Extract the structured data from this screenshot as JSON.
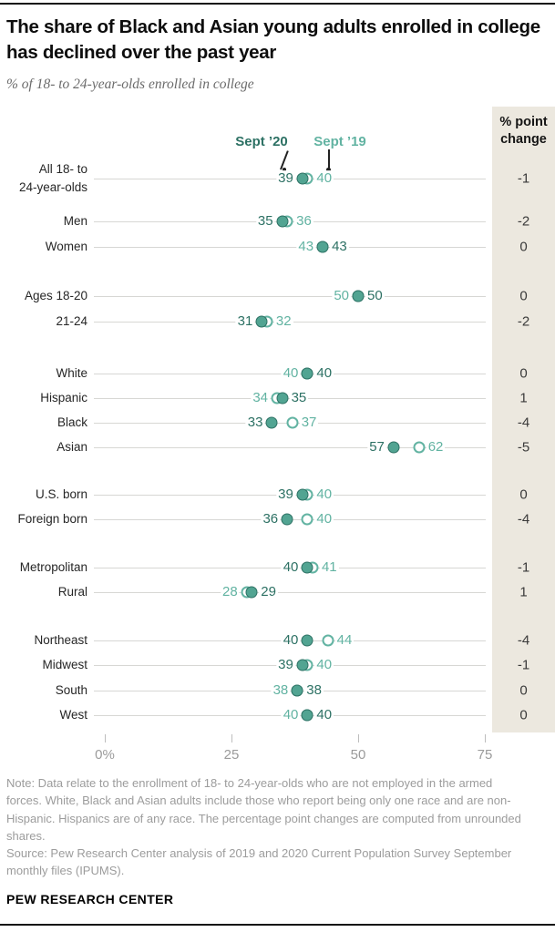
{
  "header": {
    "title": "The share of Black and Asian young adults enrolled in college has declined over the past year",
    "subtitle": "% of 18- to 24-year-olds enrolled in college"
  },
  "legend": {
    "sept20_label": "Sept ’20",
    "sept19_label": "Sept ’19"
  },
  "change_column": {
    "header_line1": "% point",
    "header_line2": "change"
  },
  "colors": {
    "dark_teal": "#2d7164",
    "dot_fill": "#52a492",
    "light_teal": "#62b3a2",
    "panel_bg": "#ece8df",
    "grid_line": "#d7d7d4"
  },
  "chart_data": {
    "type": "dumbbell-dot",
    "title": "The share of Black and Asian young adults enrolled in college has declined over the past year",
    "ylabel": "% of 18- to 24-year-olds enrolled in college",
    "series": [
      "Sept ’20",
      "Sept ’19"
    ],
    "xlim": [
      0,
      75
    ],
    "grid": "per-row horizontal lines",
    "legend_position": "top",
    "x_ticks": [
      {
        "label": "0%",
        "value": 0
      },
      {
        "label": "25",
        "value": 25
      },
      {
        "label": "50",
        "value": 50
      },
      {
        "label": "75",
        "value": 75
      }
    ],
    "rows": [
      {
        "label": "All 18- to 24-year-olds",
        "label_lines": [
          "All 18- to",
          "24-year-olds"
        ],
        "sept20": 39,
        "sept19": 40,
        "change": "-1",
        "group": 1
      },
      {
        "label": "Men",
        "label_lines": [
          "Men"
        ],
        "sept20": 35,
        "sept19": 36,
        "change": "-2",
        "group": 2
      },
      {
        "label": "Women",
        "label_lines": [
          "Women"
        ],
        "sept20": 43,
        "sept19": 43,
        "change": "0",
        "group": 2
      },
      {
        "label": "Ages 18-20",
        "label_lines": [
          "Ages 18-20"
        ],
        "sept20": 50,
        "sept19": 50,
        "change": "0",
        "group": 3
      },
      {
        "label": "21-24",
        "label_lines": [
          "21-24"
        ],
        "sept20": 31,
        "sept19": 32,
        "change": "-2",
        "group": 3
      },
      {
        "label": "White",
        "label_lines": [
          "White"
        ],
        "sept20": 40,
        "sept19": 40,
        "change": "0",
        "group": 4
      },
      {
        "label": "Hispanic",
        "label_lines": [
          "Hispanic"
        ],
        "sept20": 35,
        "sept19": 34,
        "change": "1",
        "group": 4
      },
      {
        "label": "Black",
        "label_lines": [
          "Black"
        ],
        "sept20": 33,
        "sept19": 37,
        "change": "-4",
        "group": 4
      },
      {
        "label": "Asian",
        "label_lines": [
          "Asian"
        ],
        "sept20": 57,
        "sept19": 62,
        "change": "-5",
        "group": 4
      },
      {
        "label": "U.S. born",
        "label_lines": [
          "U.S. born"
        ],
        "sept20": 39,
        "sept19": 40,
        "change": "0",
        "group": 5
      },
      {
        "label": "Foreign born",
        "label_lines": [
          "Foreign born"
        ],
        "sept20": 36,
        "sept19": 40,
        "change": "-4",
        "group": 5
      },
      {
        "label": "Metropolitan",
        "label_lines": [
          "Metropolitan"
        ],
        "sept20": 40,
        "sept19": 41,
        "change": "-1",
        "group": 6
      },
      {
        "label": "Rural",
        "label_lines": [
          "Rural"
        ],
        "sept20": 29,
        "sept19": 28,
        "change": "1",
        "group": 6
      },
      {
        "label": "Northeast",
        "label_lines": [
          "Northeast"
        ],
        "sept20": 40,
        "sept19": 44,
        "change": "-4",
        "group": 7
      },
      {
        "label": "Midwest",
        "label_lines": [
          "Midwest"
        ],
        "sept20": 39,
        "sept19": 40,
        "change": "-1",
        "group": 7
      },
      {
        "label": "South",
        "label_lines": [
          "South"
        ],
        "sept20": 38,
        "sept19": 38,
        "change": "0",
        "group": 7
      },
      {
        "label": "West",
        "label_lines": [
          "West"
        ],
        "sept20": 40,
        "sept19": 40,
        "change": "0",
        "group": 7
      }
    ]
  },
  "footer": {
    "note": "Note: Data relate to the enrollment of 18- to 24-year-olds who are not employed in the armed forces. White, Black and Asian adults include those who report being only one race and are non-Hispanic. Hispanics are of any race. The percentage point changes are computed from unrounded shares.",
    "source": "Source: Pew Research Center analysis of 2019 and 2020 Current Population Survey September monthly files (IPUMS).",
    "brand": "PEW RESEARCH CENTER"
  }
}
